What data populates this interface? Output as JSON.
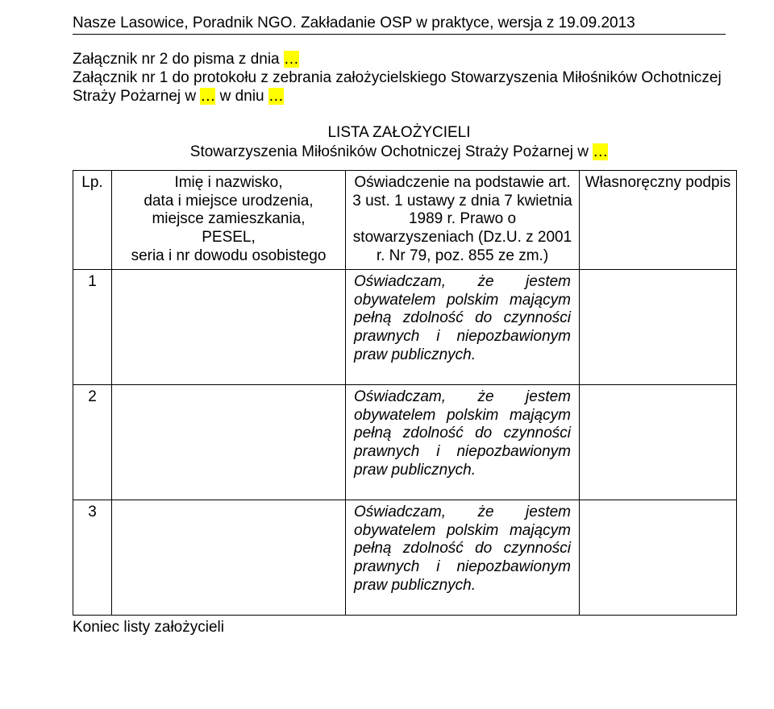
{
  "header": "Nasze Lasowice, Poradnik NGO. Zakładanie OSP w praktyce, wersja z 19.09.2013",
  "intro": {
    "line1_pre": "Załącznik nr 2 do pisma z dnia ",
    "line1_hl": "…",
    "line2_pre": "Załącznik nr 1 do protokołu z zebrania założycielskiego Stowarzyszenia Miłośników Ochotniczej Straży Pożarnej w ",
    "line2_hl": "…",
    "line2_mid": " w dniu ",
    "line2_hl2": "…"
  },
  "list_title": {
    "l1": "LISTA ZAŁOŻYCIELI",
    "l2_pre": "Stowarzyszenia Miłośników Ochotniczej Straży Pożarnej w ",
    "l2_hl": "…"
  },
  "columns": {
    "c1": "Lp.",
    "c2": "Imię i nazwisko,\ndata i miejsce urodzenia,\nmiejsce zamieszkania,\nPESEL,\nseria i nr dowodu osobistego",
    "c3": "Oświadczenie na podstawie art. 3 ust. 1 ustawy z dnia 7 kwietnia 1989 r. Prawo o stowarzyszeniach (Dz.U. z 2001 r. Nr 79, poz. 855 ze zm.)",
    "c4": "Własnoręczny podpis"
  },
  "rows": [
    {
      "lp": "1",
      "decl": "Oświadczam, że jestem obywatelem polskim mającym pełną zdolność do czynności prawnych i niepozbawionym praw publicznych."
    },
    {
      "lp": "2",
      "decl": "Oświadczam, że jestem obywatelem polskim mającym pełną zdolność do czynności prawnych i niepozbawionym praw publicznych."
    },
    {
      "lp": "3",
      "decl": "Oświadczam, że jestem obywatelem polskim mającym pełną zdolność do czynności prawnych i niepozbawionym praw publicznych."
    }
  ],
  "footer": "Koniec listy założycieli"
}
